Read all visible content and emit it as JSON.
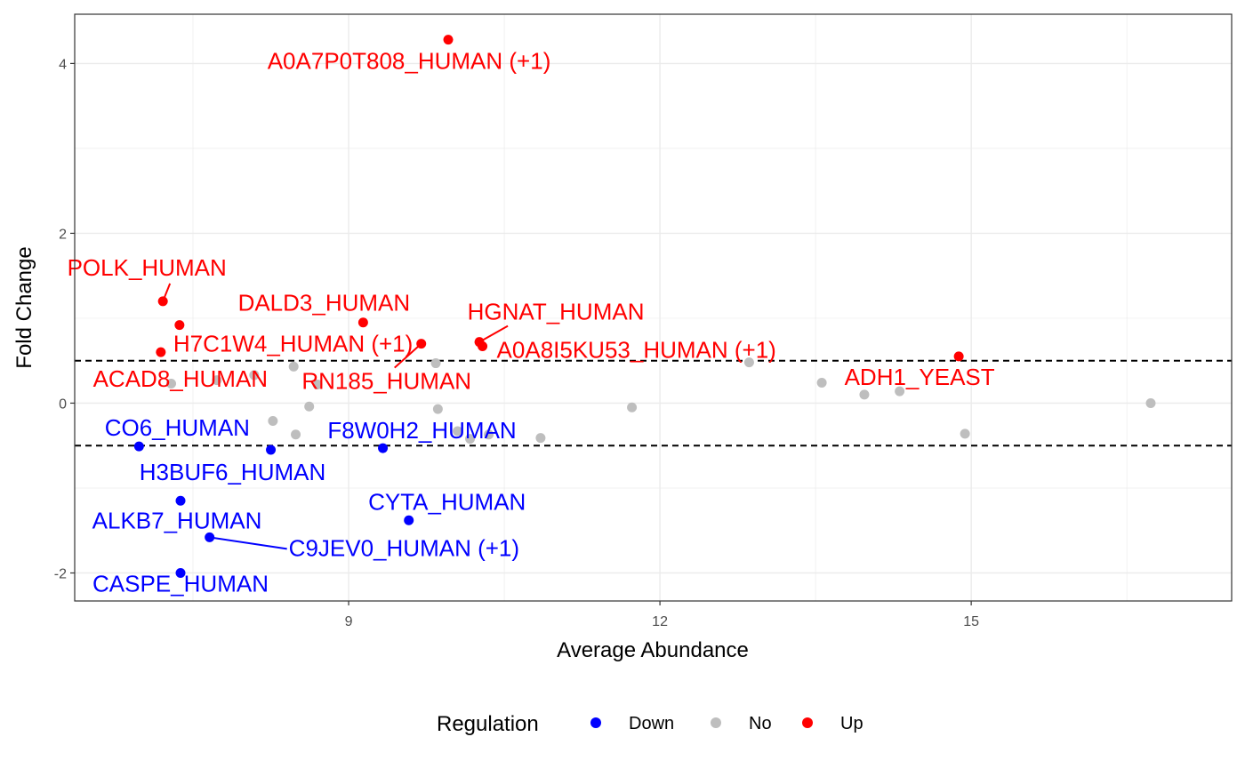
{
  "chart_data": {
    "type": "scatter",
    "xlabel": "Average Abundance",
    "ylabel": "Fold Change",
    "xlim": [
      6.36,
      17.51
    ],
    "ylim": [
      -2.33,
      4.58
    ],
    "x_ticks": [
      9,
      12,
      15
    ],
    "y_ticks": [
      -2,
      0,
      2,
      4
    ],
    "grid": true,
    "threshold_lines": [
      0.5,
      -0.5
    ],
    "legend": {
      "title": "Regulation",
      "position": "bottom",
      "items": [
        {
          "label": "Down",
          "color": "#0000ff"
        },
        {
          "label": "No",
          "color": "#bebebe"
        },
        {
          "label": "Up",
          "color": "#ff0000"
        }
      ]
    },
    "colors": {
      "Down": "#0000ff",
      "No": "#bebebe",
      "Up": "#ff0000"
    },
    "points": [
      {
        "x": 9.96,
        "y": 4.28,
        "group": "Up",
        "label": "A0A7P0T808_HUMAN (+1)"
      },
      {
        "x": 7.21,
        "y": 1.2,
        "group": "Up",
        "label": "POLK_HUMAN"
      },
      {
        "x": 7.37,
        "y": 0.92,
        "group": "Up",
        "label": "H7C1W4_HUMAN (+1)"
      },
      {
        "x": 9.14,
        "y": 0.95,
        "group": "Up",
        "label": "DALD3_HUMAN"
      },
      {
        "x": 10.26,
        "y": 0.72,
        "group": "Up",
        "label": "HGNAT_HUMAN"
      },
      {
        "x": 10.29,
        "y": 0.67,
        "group": "Up",
        "label": "A0A8I5KU53_HUMAN (+1)"
      },
      {
        "x": 9.7,
        "y": 0.7,
        "group": "Up",
        "label": "RN185_HUMAN"
      },
      {
        "x": 7.19,
        "y": 0.6,
        "group": "Up",
        "label": "ACAD8_HUMAN"
      },
      {
        "x": 14.88,
        "y": 0.55,
        "group": "Up",
        "label": "ADH1_YEAST"
      },
      {
        "x": 6.98,
        "y": -0.51,
        "group": "Down",
        "label": "CO6_HUMAN"
      },
      {
        "x": 8.25,
        "y": -0.55,
        "group": "Down",
        "label": "H3BUF6_HUMAN"
      },
      {
        "x": 9.33,
        "y": -0.53,
        "group": "Down",
        "label": "F8W0H2_HUMAN"
      },
      {
        "x": 7.38,
        "y": -1.15,
        "group": "Down",
        "label": "ALKB7_HUMAN"
      },
      {
        "x": 9.58,
        "y": -1.38,
        "group": "Down",
        "label": "CYTA_HUMAN"
      },
      {
        "x": 7.66,
        "y": -1.58,
        "group": "Down",
        "label": "C9JEV0_HUMAN (+1)"
      },
      {
        "x": 7.38,
        "y": -2.0,
        "group": "Down",
        "label": "CASPE_HUMAN"
      },
      {
        "x": 7.29,
        "y": 0.23,
        "group": "No"
      },
      {
        "x": 7.73,
        "y": 0.27,
        "group": "No"
      },
      {
        "x": 8.09,
        "y": 0.33,
        "group": "No"
      },
      {
        "x": 8.47,
        "y": 0.43,
        "group": "No"
      },
      {
        "x": 8.7,
        "y": 0.22,
        "group": "No"
      },
      {
        "x": 9.84,
        "y": 0.47,
        "group": "No"
      },
      {
        "x": 8.27,
        "y": -0.21,
        "group": "No"
      },
      {
        "x": 8.49,
        "y": -0.37,
        "group": "No"
      },
      {
        "x": 8.62,
        "y": -0.04,
        "group": "No"
      },
      {
        "x": 9.86,
        "y": -0.07,
        "group": "No"
      },
      {
        "x": 10.05,
        "y": -0.33,
        "group": "No"
      },
      {
        "x": 10.17,
        "y": -0.42,
        "group": "No"
      },
      {
        "x": 10.35,
        "y": -0.37,
        "group": "No"
      },
      {
        "x": 10.85,
        "y": -0.41,
        "group": "No"
      },
      {
        "x": 11.73,
        "y": -0.05,
        "group": "No"
      },
      {
        "x": 12.86,
        "y": 0.48,
        "group": "No"
      },
      {
        "x": 13.56,
        "y": 0.24,
        "group": "No"
      },
      {
        "x": 13.97,
        "y": 0.1,
        "group": "No"
      },
      {
        "x": 14.31,
        "y": 0.14,
        "group": "No"
      },
      {
        "x": 14.94,
        "y": -0.36,
        "group": "No"
      },
      {
        "x": 16.73,
        "y": 0.0,
        "group": "No"
      }
    ]
  }
}
